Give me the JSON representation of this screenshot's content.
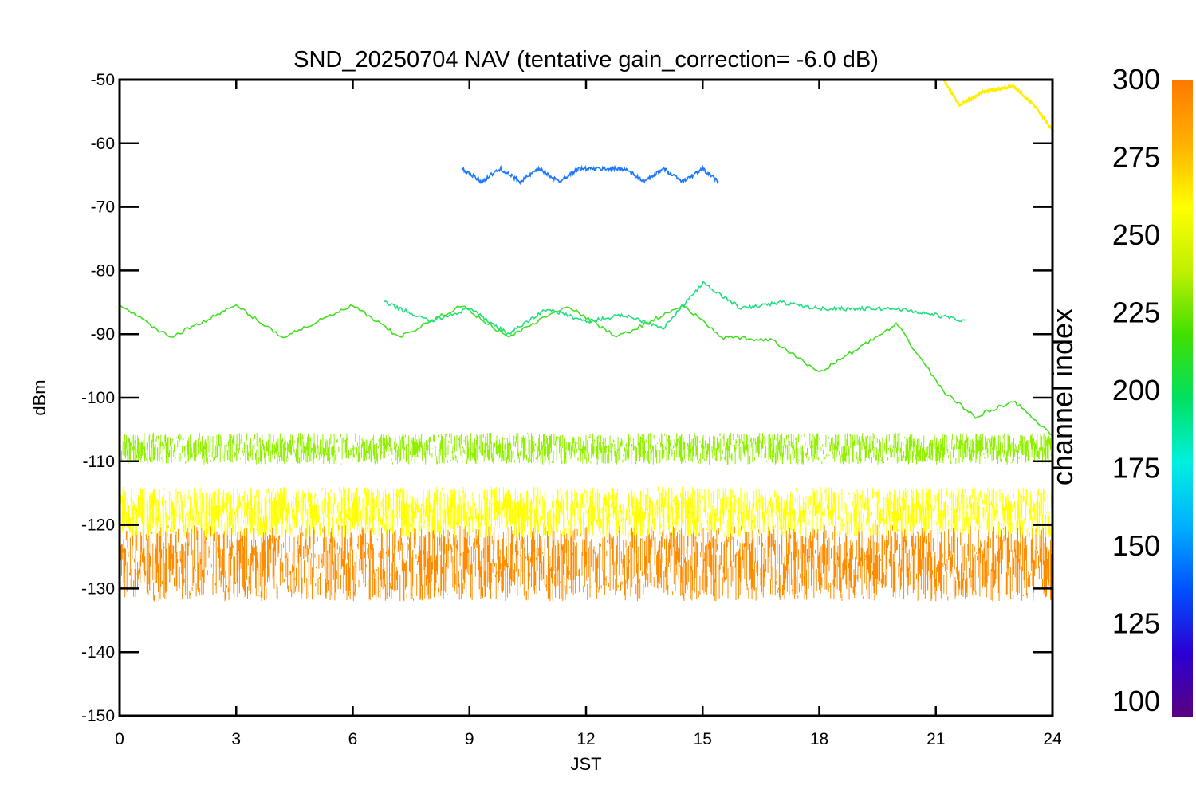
{
  "chart_data": {
    "type": "line",
    "title": "SND_20250704 NAV (tentative gain_correction= -6.0 dB)",
    "xlabel": "JST",
    "ylabel": "dBm",
    "xlim": [
      0,
      24
    ],
    "ylim": [
      -150,
      -50
    ],
    "x_ticks": [
      0,
      3,
      6,
      9,
      12,
      15,
      18,
      21,
      24
    ],
    "y_ticks": [
      -50,
      -60,
      -70,
      -80,
      -90,
      -100,
      -110,
      -120,
      -130,
      -140,
      -150
    ],
    "grid": false,
    "legend": "none",
    "colorbar": {
      "label": "channel index",
      "range": [
        100,
        300
      ],
      "ticks": [
        300,
        275,
        250,
        225,
        200,
        175,
        150,
        125,
        100
      ],
      "colors": [
        "#5a007f",
        "#2b00d4",
        "#0050ff",
        "#00b0ff",
        "#00f0e0",
        "#00e060",
        "#40e000",
        "#c0f000",
        "#ffff00",
        "#ffb000",
        "#ff7800"
      ]
    },
    "series": [
      {
        "color": "#ff8c00",
        "description_values": "noise floor band",
        "x": [
          0,
          24
        ],
        "y": [
          -126,
          -126
        ],
        "spread": 6
      },
      {
        "color": "#ffff00",
        "x": [
          0,
          24
        ],
        "y": [
          -118,
          -118
        ],
        "spread": 4
      },
      {
        "color": "#90f000",
        "x": [
          0,
          24
        ],
        "y": [
          -108,
          -108
        ],
        "spread": 2.5
      },
      {
        "color": "#40e020",
        "x": [
          0,
          1.3,
          3.0,
          4.2,
          6.0,
          7.2,
          8.8,
          10.0,
          11.5,
          12.8,
          14.5,
          15.5,
          16.8,
          18.0,
          20.0,
          21.2,
          22.0,
          23.0,
          24.0
        ],
        "y": [
          -85.5,
          -90.5,
          -85.5,
          -90.5,
          -85.5,
          -90.5,
          -85.5,
          -90.5,
          -85.5,
          -90.5,
          -85.5,
          -90.5,
          -91,
          -96,
          -88.5,
          -99,
          -103,
          -100.5,
          -106
        ]
      },
      {
        "color": "#20e080",
        "x": [
          6.8,
          8.0,
          9.0,
          10.0,
          11.0,
          12.0,
          13.0,
          14.0,
          15.0,
          16.0,
          17.0,
          18.0,
          19.0,
          20.0,
          21.0,
          21.8
        ],
        "y": [
          -85,
          -88,
          -86,
          -90,
          -86,
          -88,
          -87,
          -89,
          -82,
          -86,
          -85,
          -86,
          -86,
          -86,
          -87,
          -88
        ]
      },
      {
        "color": "#1e78ff",
        "x": [
          8.8,
          9.3,
          9.8,
          10.3,
          10.8,
          11.3,
          11.8,
          13.0,
          13.5,
          14.0,
          14.5,
          15.0,
          15.4
        ],
        "y": [
          -64,
          -66,
          -64,
          -66,
          -64,
          -66,
          -64,
          -64,
          -66,
          -64,
          -66,
          -64,
          -66
        ]
      },
      {
        "color": "#ffee00",
        "x": [
          21.2,
          21.6,
          22.2,
          23.0,
          23.6,
          24.0
        ],
        "y": [
          -50,
          -54,
          -52,
          -51,
          -54.5,
          -58
        ]
      }
    ]
  }
}
